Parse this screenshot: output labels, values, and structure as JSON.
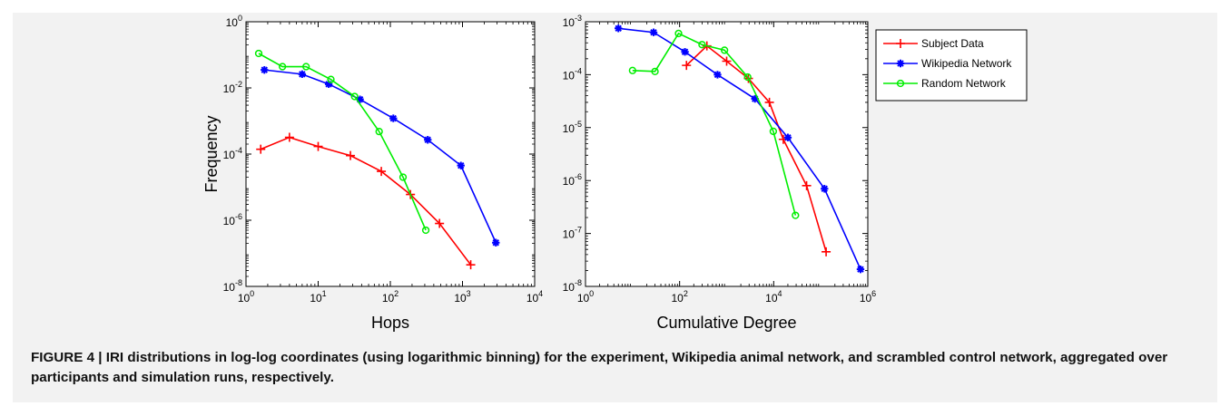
{
  "figure": {
    "caption_label": "FIGURE 4 | ",
    "caption_text": "IRI distributions in log-log coordinates (using logarithmic binning) for the experiment, Wikipedia animal network, and scrambled control network, aggregated over participants and simulation runs, respectively."
  },
  "colors": {
    "subject": "#ff0000",
    "wikipedia": "#0000ff",
    "random": "#00ee00",
    "panel": "#f2f2f2"
  },
  "chart_data": [
    {
      "type": "line",
      "xlabel": "Hops",
      "ylabel": "Frequency",
      "xscale": "log",
      "yscale": "log",
      "xlim": [
        1,
        10000
      ],
      "ylim": [
        1e-08,
        1
      ],
      "xticks": [
        1,
        10,
        100,
        1000,
        10000
      ],
      "yticks": [
        1e-08,
        1e-06,
        0.0001,
        0.01,
        1
      ],
      "xtick_base": [
        "10",
        "10",
        "10",
        "10",
        "10"
      ],
      "xtick_exp": [
        "0",
        "1",
        "2",
        "3",
        "4"
      ],
      "ytick_base": [
        "10",
        "10",
        "10",
        "10",
        "10"
      ],
      "ytick_exp": [
        "-8",
        "-6",
        "-4",
        "-2",
        "0"
      ],
      "grid": false,
      "series": [
        {
          "name": "Subject Data",
          "color": "#ff0000",
          "marker": "plus",
          "points": [
            [
              1.6,
              0.00014
            ],
            [
              4.0,
              0.00032
            ],
            [
              10,
              0.00017
            ],
            [
              28,
              9e-05
            ],
            [
              75,
              3e-05
            ],
            [
              190,
              6e-06
            ],
            [
              480,
              8e-07
            ],
            [
              1300,
              4.5e-08
            ]
          ]
        },
        {
          "name": "Wikipedia Network",
          "color": "#0000ff",
          "marker": "star",
          "points": [
            [
              1.8,
              0.035
            ],
            [
              6.0,
              0.026
            ],
            [
              14,
              0.013
            ],
            [
              38,
              0.0045
            ],
            [
              110,
              0.0012
            ],
            [
              330,
              0.00027
            ],
            [
              950,
              4.5e-05
            ],
            [
              2900,
              2.1e-07
            ]
          ]
        },
        {
          "name": "Random Network",
          "color": "#00ee00",
          "marker": "circle",
          "points": [
            [
              1.5,
              0.11
            ],
            [
              3.2,
              0.044
            ],
            [
              6.8,
              0.044
            ],
            [
              15,
              0.018
            ],
            [
              32,
              0.0055
            ],
            [
              70,
              0.00048
            ],
            [
              150,
              2e-05
            ],
            [
              310,
              5e-07
            ]
          ]
        }
      ]
    },
    {
      "type": "line",
      "xlabel": "Cumulative Degree",
      "ylabel": "",
      "xscale": "log",
      "yscale": "log",
      "xlim": [
        1,
        1000000
      ],
      "ylim": [
        1e-08,
        0.001
      ],
      "xticks": [
        1,
        100,
        10000,
        1000000
      ],
      "yticks": [
        1e-08,
        1e-07,
        1e-06,
        1e-05,
        0.0001,
        0.001
      ],
      "xtick_base": [
        "10",
        "10",
        "10",
        "10"
      ],
      "xtick_exp": [
        "0",
        "2",
        "4",
        "6"
      ],
      "ytick_base": [
        "10",
        "10",
        "10",
        "10",
        "10",
        "10"
      ],
      "ytick_exp": [
        "-8",
        "-7",
        "-6",
        "-5",
        "-4",
        "-3"
      ],
      "grid": false,
      "series": [
        {
          "name": "Subject Data",
          "color": "#ff0000",
          "marker": "plus",
          "points": [
            [
              140,
              0.00015
            ],
            [
              380,
              0.00035
            ],
            [
              1000,
              0.00018
            ],
            [
              2900,
              8.5e-05
            ],
            [
              8100,
              3e-05
            ],
            [
              16000,
              6e-06
            ],
            [
              50000,
              8e-07
            ],
            [
              130000,
              4.5e-08
            ]
          ]
        },
        {
          "name": "Wikipedia Network",
          "color": "#0000ff",
          "marker": "star",
          "points": [
            [
              5,
              0.00075
            ],
            [
              28,
              0.00063
            ],
            [
              130,
              0.00027
            ],
            [
              640,
              0.0001
            ],
            [
              4000,
              3.5e-05
            ],
            [
              20000,
              6.5e-06
            ],
            [
              120000,
              7e-07
            ],
            [
              700000,
              2.1e-08
            ]
          ]
        },
        {
          "name": "Random Network",
          "color": "#00ee00",
          "marker": "circle",
          "points": [
            [
              10,
              0.00012
            ],
            [
              30,
              0.000115
            ],
            [
              95,
              0.0006
            ],
            [
              300,
              0.00037
            ],
            [
              900,
              0.00029
            ],
            [
              2800,
              9e-05
            ],
            [
              9800,
              8.5e-06
            ],
            [
              29000,
              2.2e-07
            ]
          ]
        }
      ]
    }
  ],
  "legend": {
    "position": "right",
    "entries": [
      {
        "label": "Subject Data",
        "color": "#ff0000",
        "marker": "plus"
      },
      {
        "label": "Wikipedia Network",
        "color": "#0000ff",
        "marker": "star"
      },
      {
        "label": "Random Network",
        "color": "#00ee00",
        "marker": "circle"
      }
    ]
  }
}
